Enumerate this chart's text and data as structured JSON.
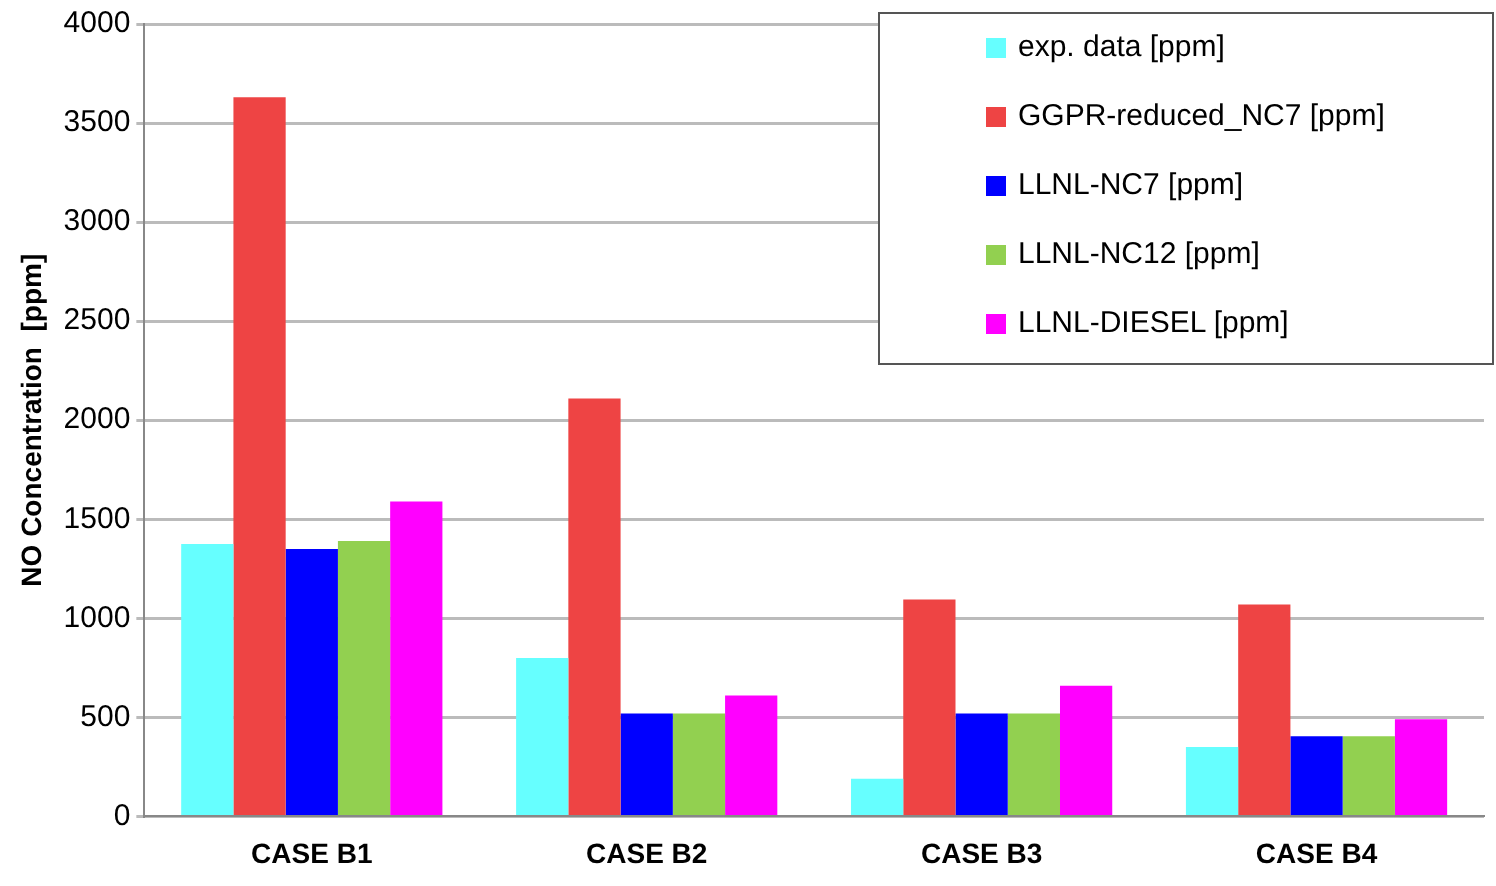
{
  "chart_data": {
    "type": "bar",
    "ylabel": "NO Concentration  [ppm]",
    "categories": [
      "CASE B1",
      "CASE B2",
      "CASE B3",
      "CASE B4"
    ],
    "series": [
      {
        "name": "exp. data [ppm]",
        "color": "#66ffff",
        "values": [
          1375,
          800,
          190,
          350
        ]
      },
      {
        "name": "GGPR-reduced_NC7 [ppm]",
        "color": "#ee4444",
        "values": [
          3630,
          2110,
          1095,
          1070
        ]
      },
      {
        "name": "LLNL-NC7 [ppm]",
        "color": "#0000ff",
        "values": [
          1350,
          520,
          520,
          405
        ]
      },
      {
        "name": "LLNL-NC12 [ppm]",
        "color": "#92d050",
        "values": [
          1390,
          520,
          520,
          405
        ]
      },
      {
        "name": "LLNL-DIESEL [ppm]",
        "color": "#ff00ff",
        "values": [
          1590,
          610,
          660,
          490
        ]
      }
    ],
    "ylim": [
      0,
      4000
    ],
    "yticks": [
      0,
      500,
      1000,
      1500,
      2000,
      2500,
      3000,
      3500,
      4000
    ],
    "grid": "y",
    "legend": "top right"
  }
}
